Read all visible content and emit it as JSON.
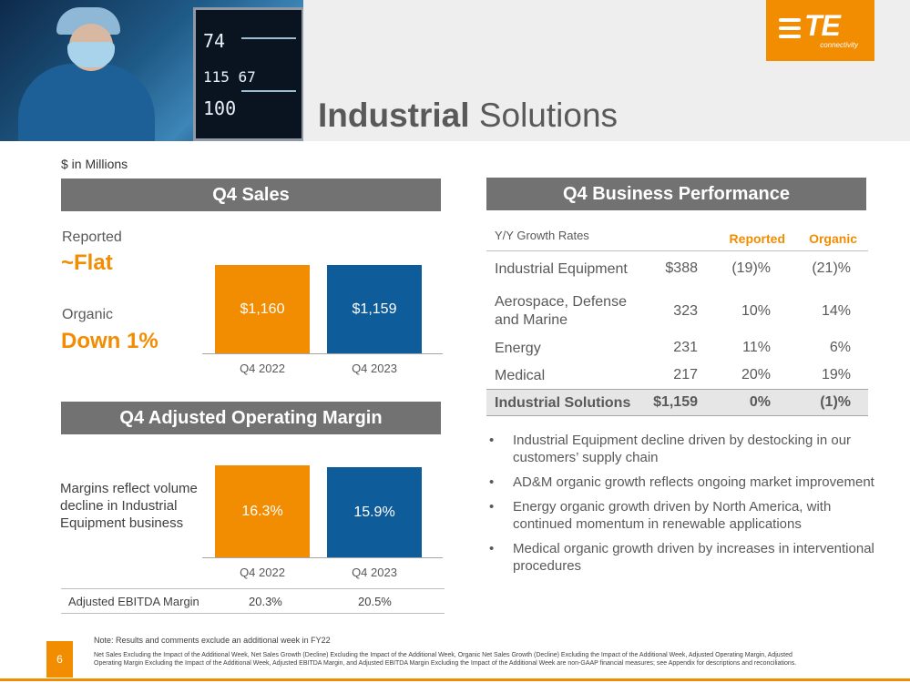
{
  "page": {
    "title_bold": "Industrial",
    "title_rest": "Solutions",
    "units": "$ in Millions",
    "page_number": "6"
  },
  "brand": {
    "logo_text": "TE",
    "logo_sub": "connectivity",
    "accent_color": "#f28c00",
    "blue_color": "#0f5c9a",
    "header_gray": "#727272"
  },
  "hero": {
    "monitor_value_1": "74",
    "monitor_value_2": "115 67",
    "monitor_value_3": "100"
  },
  "sales": {
    "header": "Q4 Sales",
    "reported_label": "Reported",
    "reported_value": "~Flat",
    "organic_label": "Organic",
    "organic_value": "Down 1%",
    "chart_data": {
      "type": "bar",
      "categories": [
        "Q4 2022",
        "Q4 2023"
      ],
      "values": [
        1160,
        1159
      ],
      "labels": [
        "$1,160",
        "$1,159"
      ],
      "colors": [
        "#f28c00",
        "#0f5c9a"
      ]
    }
  },
  "margin": {
    "header": "Q4 Adjusted Operating Margin",
    "note": "Margins reflect volume decline in Industrial Equipment business",
    "chart_data": {
      "type": "bar",
      "categories": [
        "Q4 2022",
        "Q4 2023"
      ],
      "values": [
        16.3,
        15.9
      ],
      "labels": [
        "16.3%",
        "15.9%"
      ],
      "colors": [
        "#f28c00",
        "#0f5c9a"
      ]
    },
    "ebitda": {
      "label": "Adjusted EBITDA Margin",
      "q4_2022": "20.3%",
      "q4_2023": "20.5%"
    }
  },
  "performance": {
    "header": "Q4 Business Performance",
    "growth_label": "Y/Y Growth Rates",
    "col_reported": "Reported",
    "col_organic": "Organic",
    "rows": [
      {
        "name": "Industrial Equipment",
        "sales": "$388",
        "reported": "(19)%",
        "organic": "(21)%"
      },
      {
        "name": "Aerospace, Defense and Marine",
        "sales": "323",
        "reported": "10%",
        "organic": "14%"
      },
      {
        "name": "Energy",
        "sales": "231",
        "reported": "11%",
        "organic": "6%"
      },
      {
        "name": "Medical",
        "sales": "217",
        "reported": "20%",
        "organic": "19%"
      }
    ],
    "total": {
      "name": "Industrial Solutions",
      "sales": "$1,159",
      "reported": "0%",
      "organic": "(1)%"
    }
  },
  "bullets": [
    "Industrial Equipment decline driven by destocking in our customers’ supply chain",
    "AD&M organic growth reflects ongoing market improvement",
    "Energy organic growth driven by North America, with continued momentum in renewable applications",
    "Medical organic growth driven by increases in interventional procedures"
  ],
  "bullet_glyph": "•",
  "footer": {
    "note": "Note: Results and comments exclude an additional week in FY22",
    "fine_print": "Net Sales Excluding the Impact of the Additional Week, Net Sales Growth (Decline) Excluding the Impact of the Additional Week, Organic Net Sales Growth (Decline) Excluding the Impact of the Additional Week, Adjusted Operating Margin, Adjusted Operating Margin Excluding the Impact of the Additional Week, Adjusted EBITDA Margin, and Adjusted EBITDA Margin Excluding the Impact of the Additional Week are non-GAAP financial measures; see Appendix for descriptions and reconciliations."
  }
}
